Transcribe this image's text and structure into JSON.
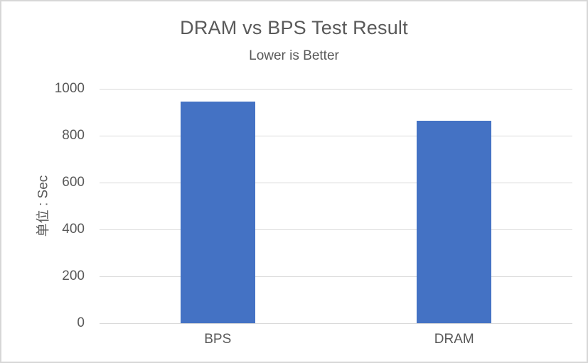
{
  "chart": {
    "title": "DRAM vs BPS Test Result",
    "subtitle": "Lower is Better",
    "y_axis_title": "单位 : Sec"
  },
  "chart_data": {
    "type": "bar",
    "title": "DRAM vs BPS Test Result",
    "subtitle": "Lower is Better",
    "categories": [
      "BPS",
      "DRAM"
    ],
    "values": [
      945,
      864
    ],
    "xlabel": "",
    "ylabel": "单位 : Sec",
    "ylim": [
      0,
      1000
    ],
    "yticks": [
      0,
      200,
      400,
      600,
      800,
      1000
    ],
    "grid": true,
    "legend_position": "none",
    "bar_color": "#4472C4",
    "gridline_color": "#D9D9D9",
    "text_color": "#595959",
    "border_color": "#D7D7D7"
  }
}
